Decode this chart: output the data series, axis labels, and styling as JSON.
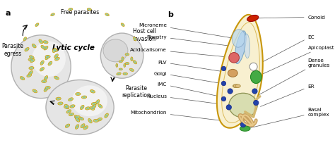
{
  "fig_width": 4.74,
  "fig_height": 2.07,
  "dpi": 100,
  "bg_color": "#ffffff",
  "panel_a": {
    "label": "a",
    "title": "Lytic cycle",
    "free_parasites": "Free parasites",
    "parasite_egress": "Parasite\negress",
    "host_cell_invasion": "Host cell\ninvasion",
    "parasite_replication": "Parasite\nreplication",
    "parasite_fill": "#c8d870",
    "parasite_fill2": "#a8c870",
    "parasite_inner": "#7bbfb0",
    "parasite_edge": "#c8960a",
    "cell_face": "#e8e8e8",
    "cell_edge": "#b0b0b0",
    "nucleus_face": "#d5d5d5"
  },
  "panel_b": {
    "label": "b",
    "outer_fill": "#f8f0d0",
    "outer_edge": "#c8960a",
    "conoid_fill": "#cc2200",
    "rhoptry_fill": "#aaccee",
    "rhoptry_edge": "#6699bb",
    "microneme_fill": "#b8d8ee",
    "acidocalisome_fill": "#dd6666",
    "acidocalisome_edge": "#aa3333",
    "plv_fill": "#d4a060",
    "plv_edge": "#a07030",
    "golgi_fill": "#e0c080",
    "golgi_edge": "#a08030",
    "nucleus_fill": "#d8ddb0",
    "nucleus_edge": "#8a9050",
    "apicoplast_fill": "#44aa44",
    "apicoplast_edge": "#228822",
    "ec_fill": "#ffffff",
    "ec_edge": "#888888",
    "dense_fill": "#2244aa",
    "dense_edge": "#112288",
    "mito_fill": "#c8a060",
    "er_fill": "#d4b870",
    "basal_fill": "#44aa44",
    "basal_edge": "#228822",
    "imc_edge": "#c8960a",
    "labels": {
      "microneme": "Microneme",
      "rhoptry": "Rhoptry",
      "acidocalisome": "Acidocalisome",
      "plv": "PLV",
      "golgi": "Golgi",
      "imc": "IMC",
      "nucleus": "Nucleus",
      "mitochondrion": "Mitochondrion",
      "conoid": "Conoid",
      "ec": "EC",
      "apicoplast": "Apicoplast",
      "dense_granules": "Dense\ngranules",
      "er": "ER",
      "basal_complex": "Basal\ncomplex"
    }
  }
}
